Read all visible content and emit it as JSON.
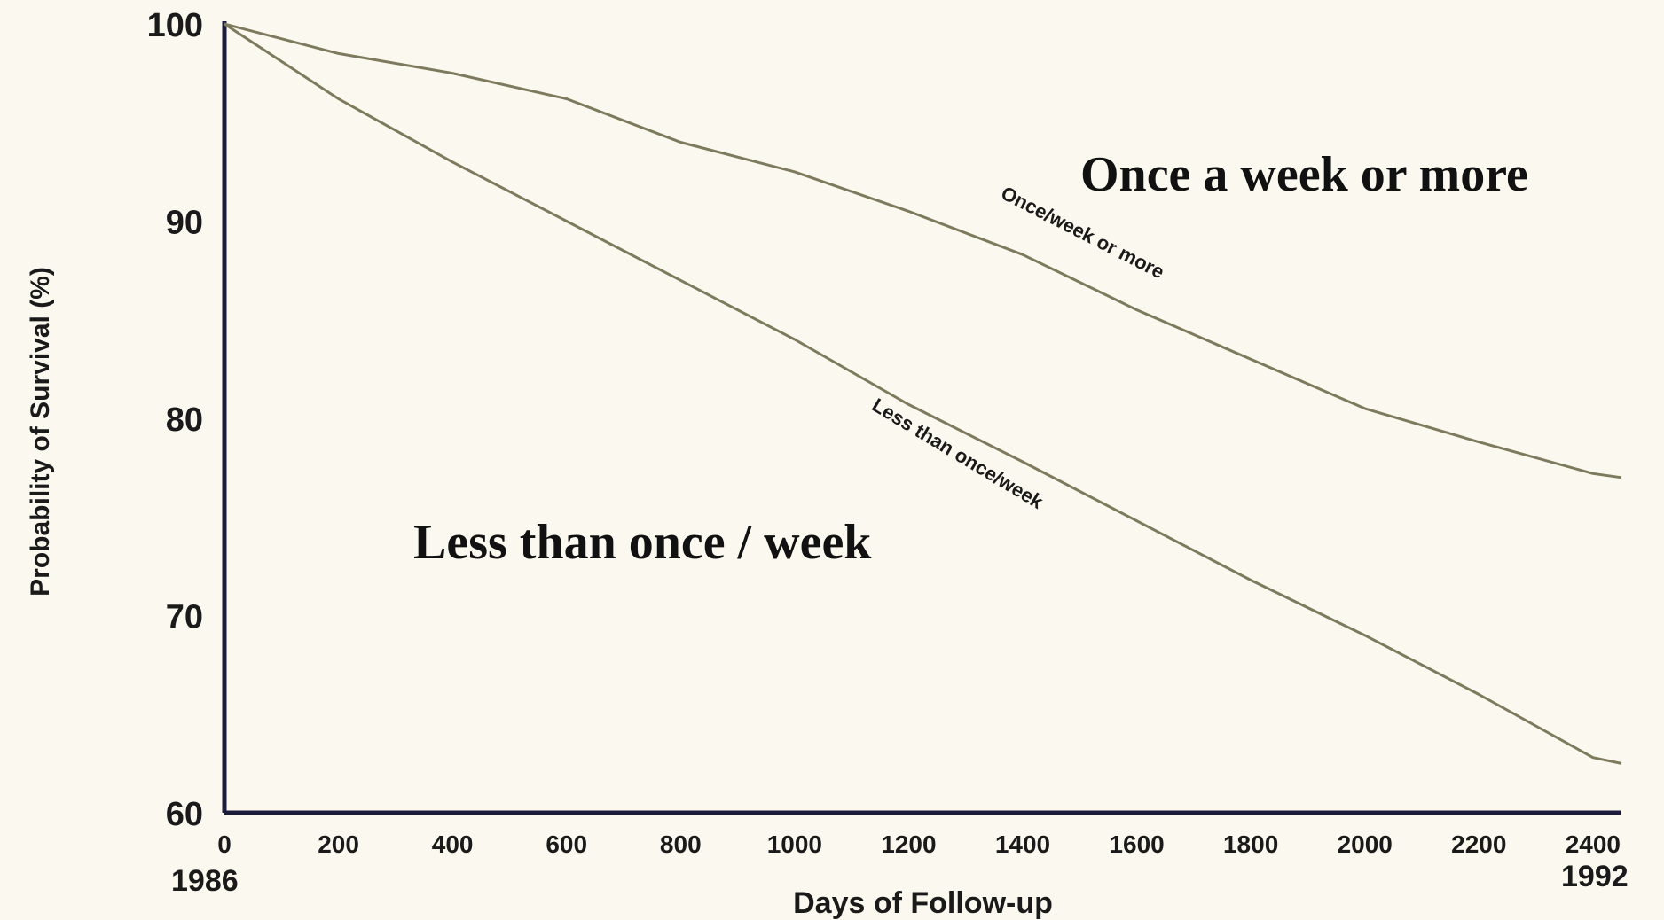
{
  "chart_data": {
    "type": "line",
    "title": "",
    "xlabel": "Days of Follow-up",
    "ylabel": "Probability of Survival (%)",
    "xlim": [
      0,
      2450
    ],
    "ylim": [
      60,
      100
    ],
    "x_ticks": [
      0,
      200,
      400,
      600,
      800,
      1000,
      1200,
      1400,
      1600,
      1800,
      2000,
      2200,
      2400
    ],
    "y_ticks": [
      60,
      70,
      80,
      90,
      100
    ],
    "x_start_label": "1986",
    "x_end_label": "1992",
    "grid": false,
    "series": [
      {
        "name": "Once/week or more",
        "x": [
          0,
          200,
          400,
          600,
          800,
          1000,
          1200,
          1400,
          1600,
          1800,
          2000,
          2200,
          2400,
          2450
        ],
        "values": [
          100,
          98.5,
          97.5,
          96.2,
          94,
          92.5,
          90.5,
          88.3,
          85.5,
          83,
          80.5,
          78.8,
          77.2,
          77
        ]
      },
      {
        "name": "Less than once/week",
        "x": [
          0,
          200,
          400,
          600,
          800,
          1000,
          1200,
          1400,
          1600,
          1800,
          2000,
          2200,
          2400,
          2450
        ],
        "values": [
          100,
          96.2,
          93,
          90,
          87,
          84,
          80.7,
          77.8,
          74.8,
          71.8,
          69,
          66,
          62.8,
          62.5
        ]
      }
    ],
    "overlay_labels": {
      "upper": "Once a week or more",
      "lower": "Less than once / week"
    }
  }
}
